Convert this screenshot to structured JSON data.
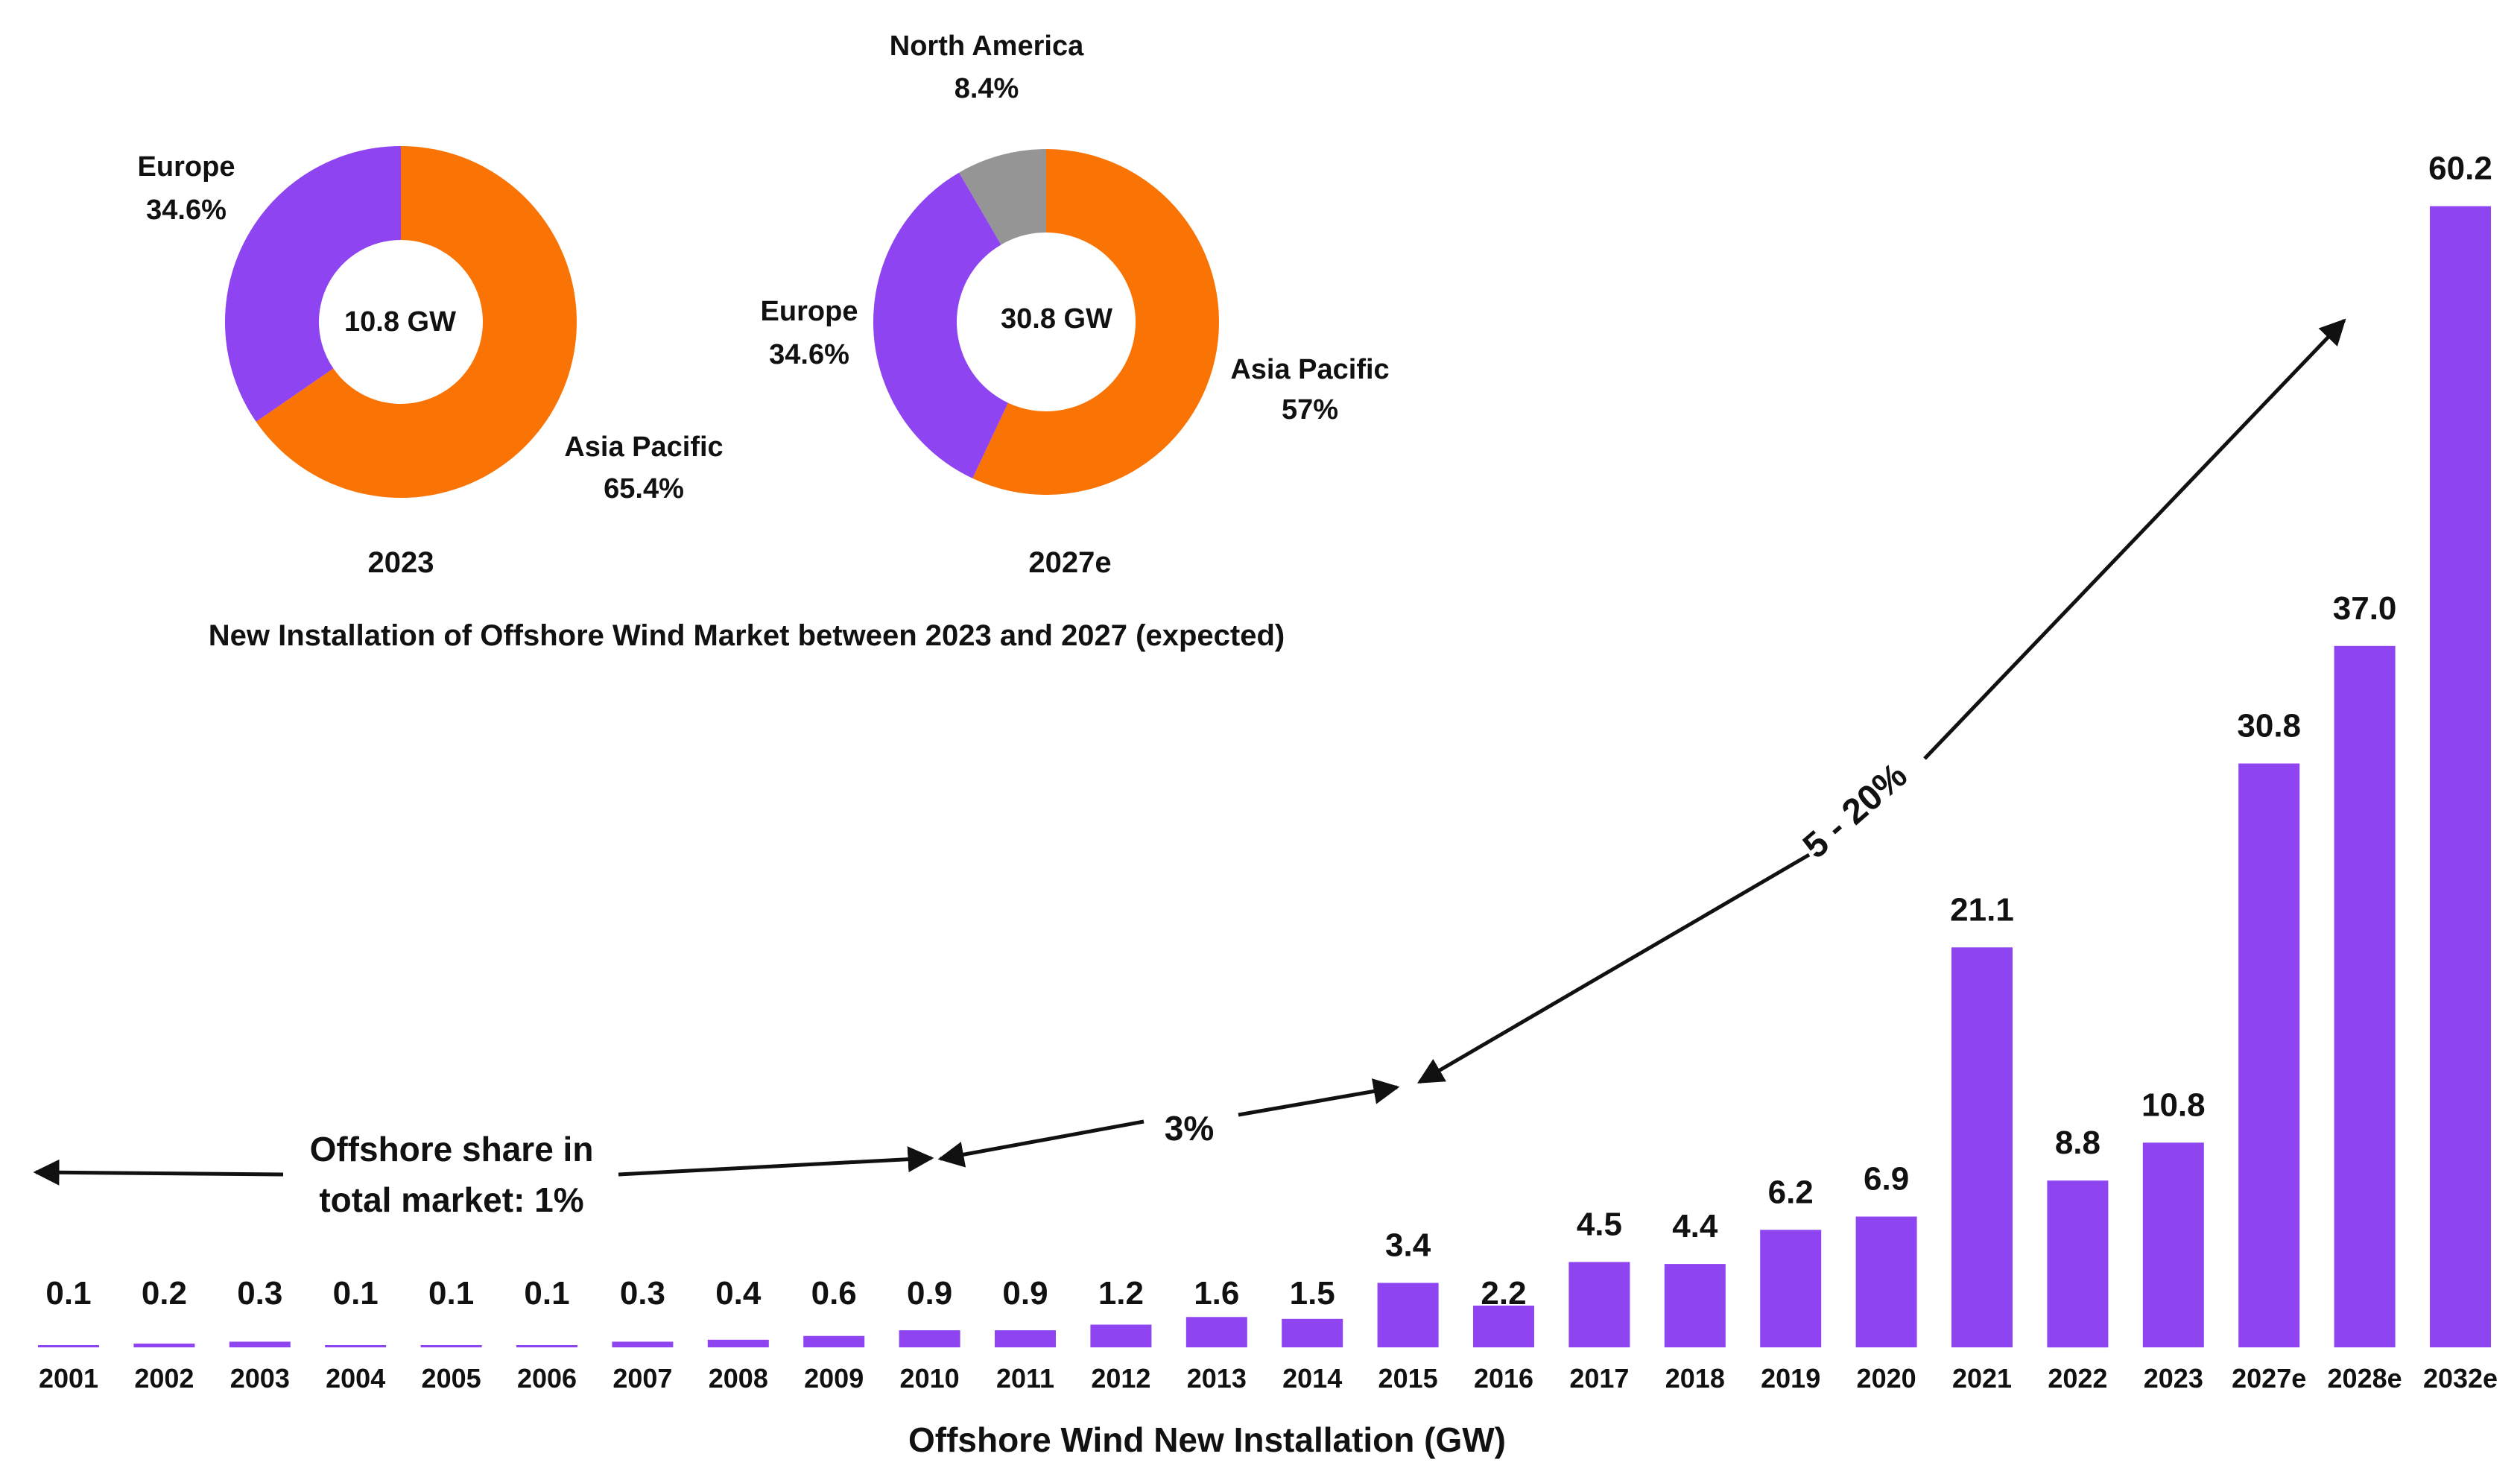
{
  "chart_data": [
    {
      "type": "bar",
      "title": "Offshore Wind New Installation (GW)",
      "xlabel": "Offshore Wind New Installation (GW)",
      "ylabel": "",
      "ylim": [
        0,
        64
      ],
      "grid": false,
      "colors": {
        "bar": "#8e44f0",
        "text": "#111111"
      },
      "categories": [
        "2001",
        "2002",
        "2003",
        "2004",
        "2005",
        "2006",
        "2007",
        "2008",
        "2009",
        "2010",
        "2011",
        "2012",
        "2013",
        "2014",
        "2015",
        "2016",
        "2017",
        "2018",
        "2019",
        "2020",
        "2021",
        "2022",
        "2023",
        "2027e",
        "2028e",
        "2032e"
      ],
      "values": [
        0.1,
        0.2,
        0.3,
        0.1,
        0.1,
        0.1,
        0.3,
        0.4,
        0.6,
        0.9,
        0.9,
        1.2,
        1.6,
        1.5,
        3.4,
        2.2,
        4.5,
        4.4,
        6.2,
        6.9,
        21.1,
        8.8,
        10.8,
        30.8,
        37.0,
        60.2
      ],
      "value_labels": [
        "0.1",
        "0.2",
        "0.3",
        "0.1",
        "0.1",
        "0.1",
        "0.3",
        "0.4",
        "0.6",
        "0.9",
        "0.9",
        "1.2",
        "1.6",
        "1.5",
        "3.4",
        "2.2",
        "4.5",
        "4.4",
        "6.2",
        "6.9",
        "21.1",
        "8.8",
        "10.8",
        "30.8",
        "37.0",
        "60.2"
      ],
      "annotations": {
        "share_1": "Offshore share in",
        "share_1b": "total market: 1%",
        "share_2": "3%",
        "share_3": "5 - 20%"
      }
    },
    {
      "type": "pie",
      "title": "New Installation of Offshore Wind Market between 2023 and 2027 (expected)",
      "year": "2023",
      "center_label": "10.8 GW",
      "slices": [
        {
          "name": "Asia Pacific",
          "value": 65.4,
          "label": "65.4%",
          "color": "#fa7305"
        },
        {
          "name": "Europe",
          "value": 34.6,
          "label": "34.6%",
          "color": "#8e44f0"
        }
      ]
    },
    {
      "type": "pie",
      "title": "New Installation of Offshore Wind Market between 2023 and 2027 (expected)",
      "year": "2027e",
      "center_label": "30.8 GW",
      "slices": [
        {
          "name": "Asia Pacific",
          "value": 57,
          "label": "57%",
          "color": "#fa7305"
        },
        {
          "name": "Europe",
          "value": 34.6,
          "label": "34.6%",
          "color": "#8e44f0"
        },
        {
          "name": "North America",
          "value": 8.4,
          "label": "8.4%",
          "color": "#959595"
        }
      ]
    }
  ]
}
